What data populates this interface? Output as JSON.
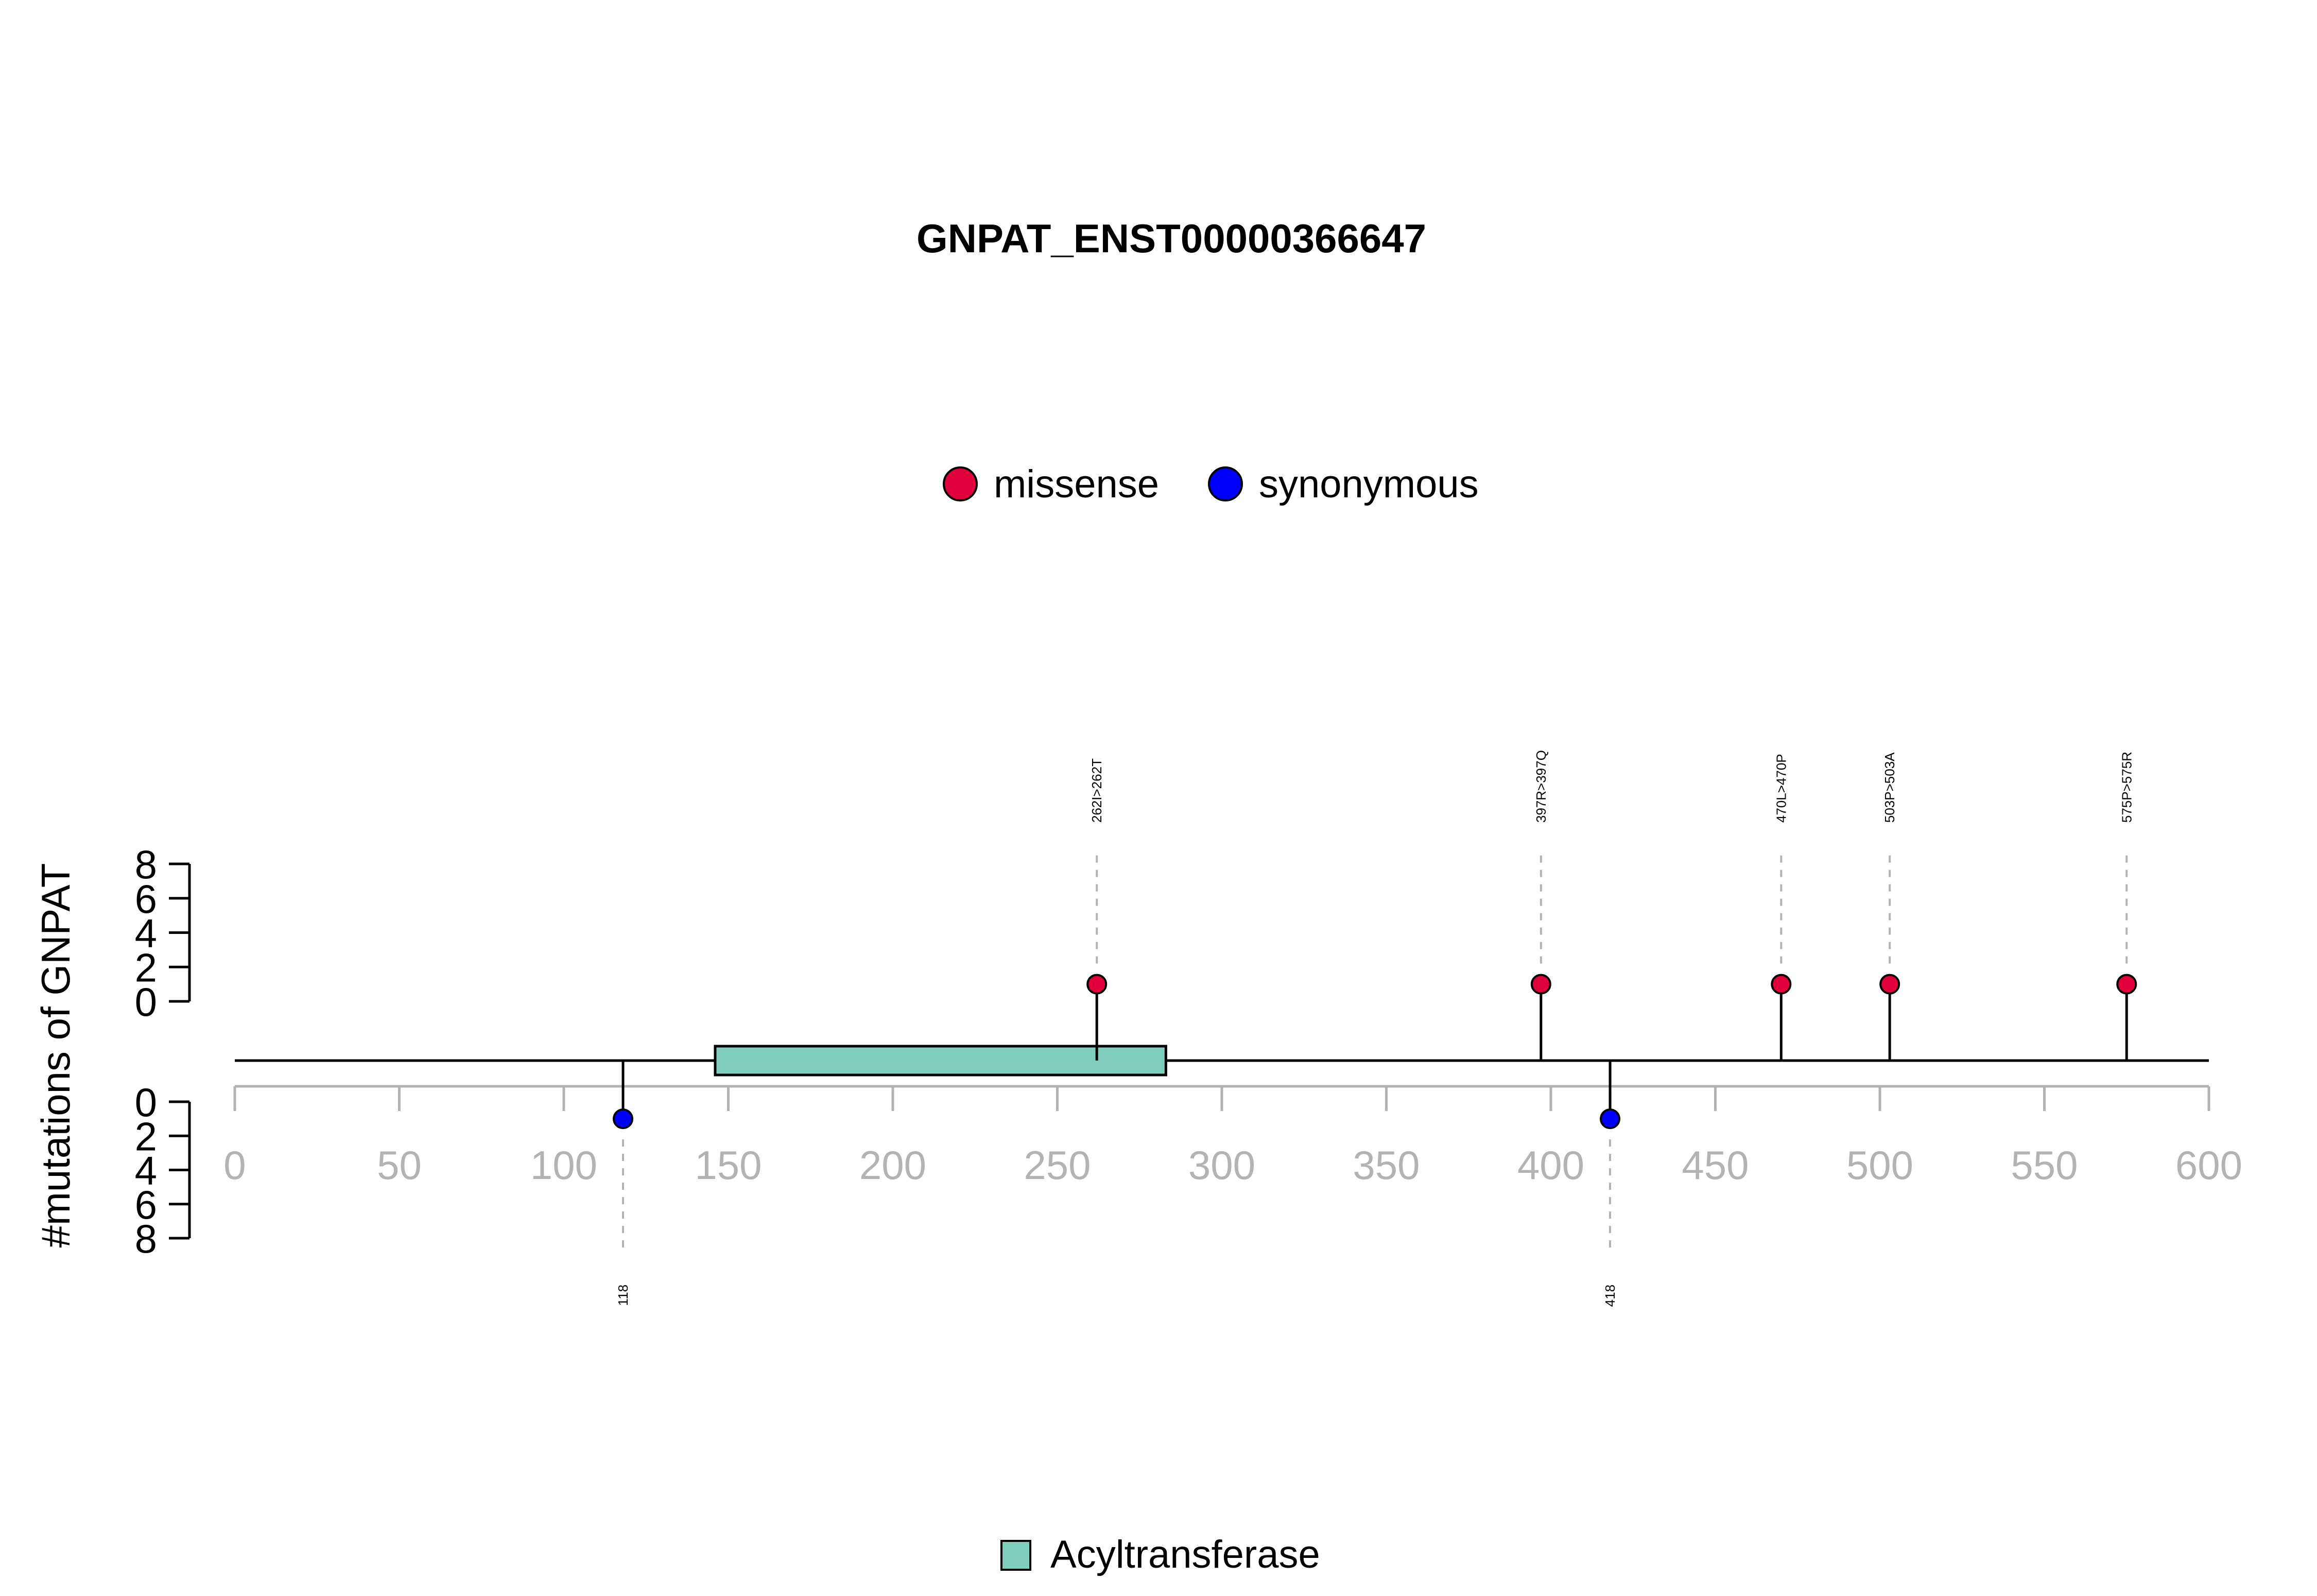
{
  "chart_data": {
    "type": "lollipop",
    "title": "GNPAT_ENST00000366647",
    "ylabel": "#mutations of GNPAT",
    "xlim": [
      0,
      600
    ],
    "x_ticks": [
      0,
      50,
      100,
      150,
      200,
      250,
      300,
      350,
      400,
      450,
      500,
      550,
      600
    ],
    "y_ticks": [
      0,
      2,
      4,
      6,
      8
    ],
    "ylim": [
      0,
      8
    ],
    "legend_types": [
      {
        "name": "missense",
        "color": "#e0003c"
      },
      {
        "name": "synonymous",
        "color": "#0000ff"
      }
    ],
    "domains": [
      {
        "name": "Acyltransferase",
        "start": 146,
        "end": 283,
        "color": "#7fcdbb"
      }
    ],
    "mutations": [
      {
        "position": 262,
        "count": 1,
        "type": "missense",
        "label": "262I>262T"
      },
      {
        "position": 397,
        "count": 1,
        "type": "missense",
        "label": "397R>397Q"
      },
      {
        "position": 470,
        "count": 1,
        "type": "missense",
        "label": "470L>470P"
      },
      {
        "position": 503,
        "count": 1,
        "type": "missense",
        "label": "503P>503A"
      },
      {
        "position": 575,
        "count": 1,
        "type": "missense",
        "label": "575P>575R"
      },
      {
        "position": 118,
        "count": 1,
        "type": "synonymous",
        "label": "118"
      },
      {
        "position": 418,
        "count": 1,
        "type": "synonymous",
        "label": "418"
      }
    ]
  }
}
